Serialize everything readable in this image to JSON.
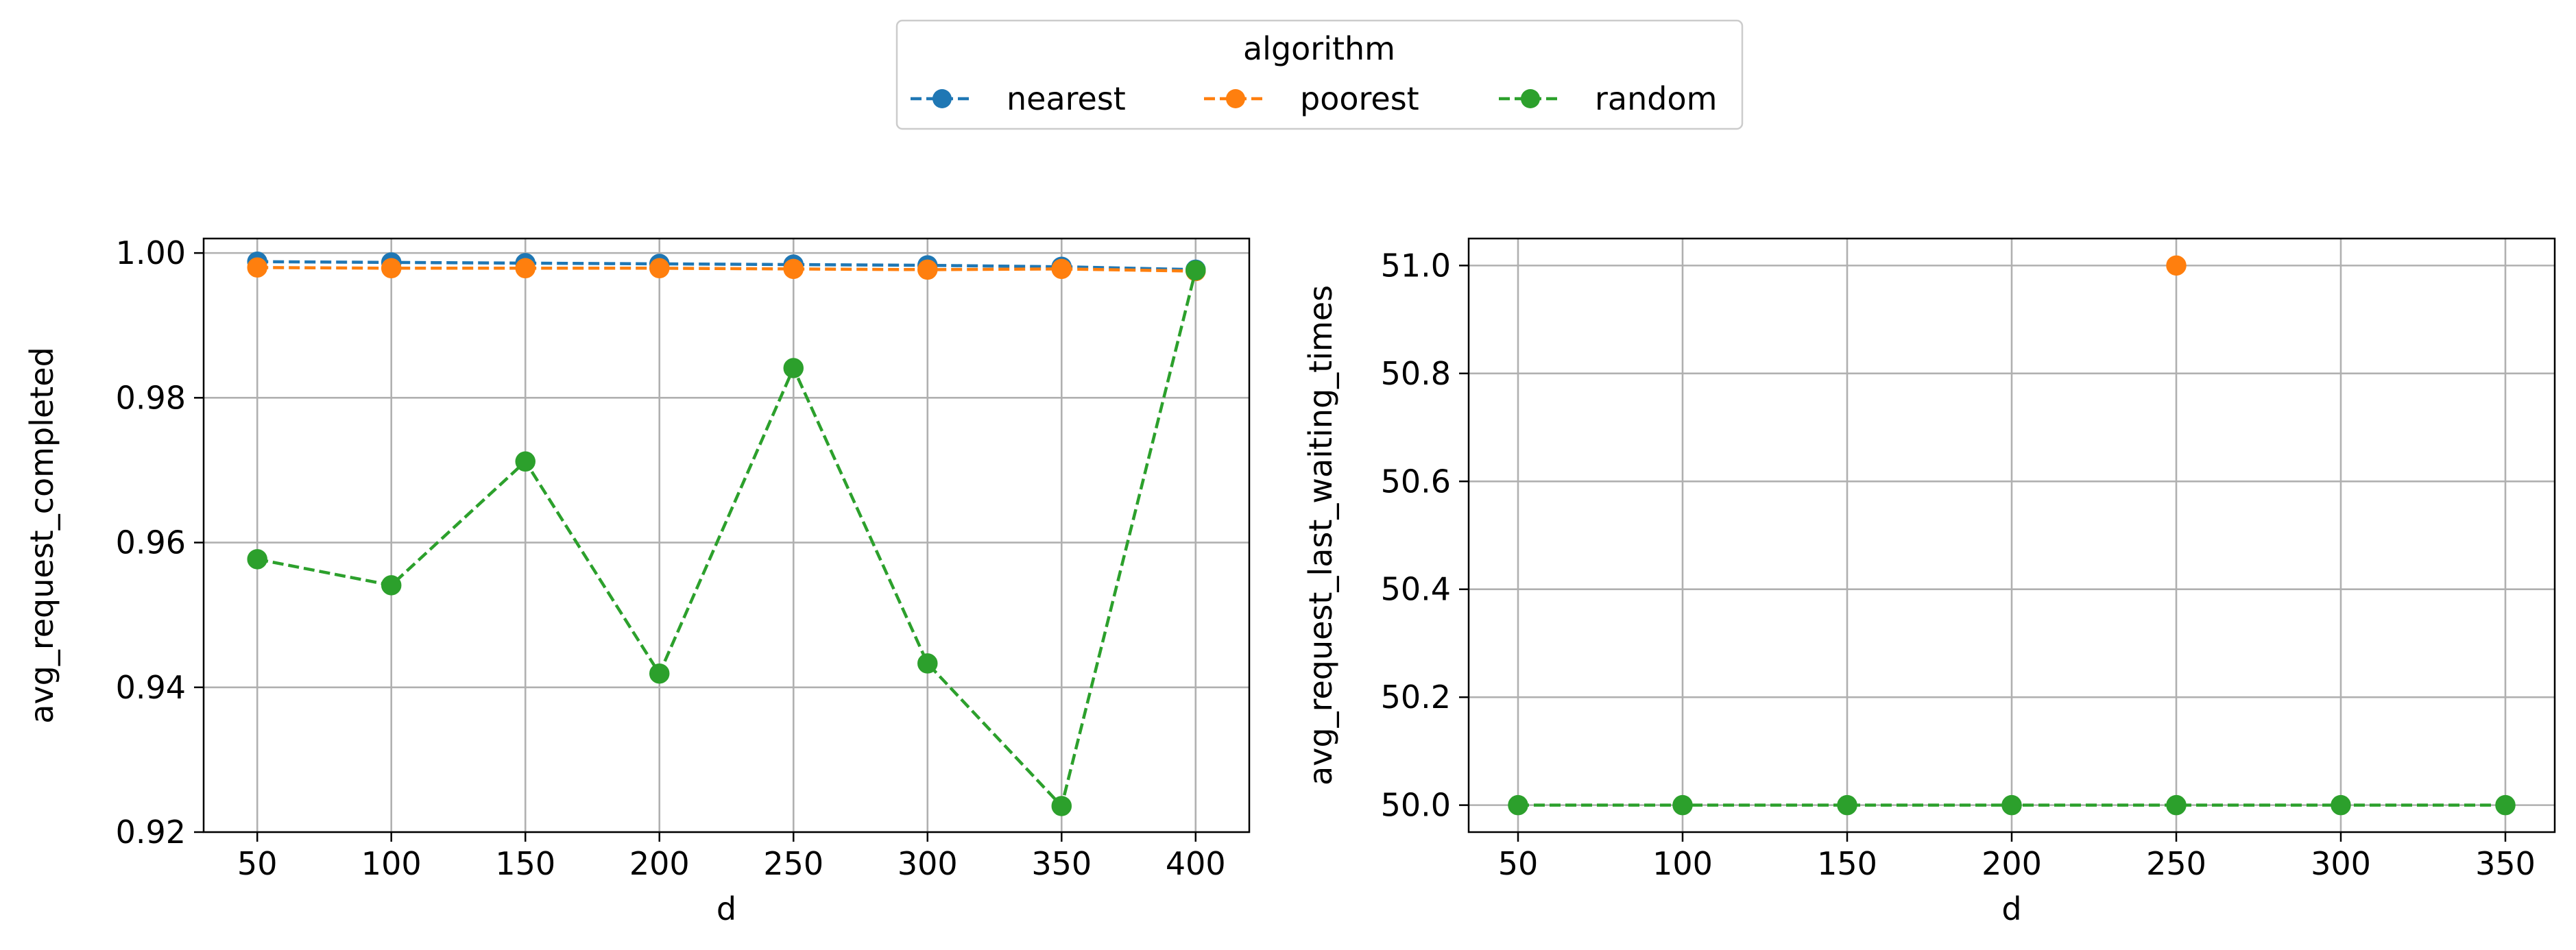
{
  "legend": {
    "title": "algorithm",
    "placement": "top-center",
    "entries": [
      {
        "label": "nearest",
        "color": "#1f77b4"
      },
      {
        "label": "poorest",
        "color": "#ff7f0e"
      },
      {
        "label": "random",
        "color": "#2ca02c"
      }
    ]
  },
  "chart_data": [
    {
      "type": "line",
      "xlabel": "d",
      "ylabel": "avg_request_completed",
      "grid": true,
      "line_style": "dashed",
      "marker": "circle",
      "xlim": [
        30,
        420
      ],
      "ylim": [
        0.92,
        1.002
      ],
      "xticks": [
        50,
        100,
        150,
        200,
        250,
        300,
        350,
        400
      ],
      "xtick_labels": [
        "50",
        "100",
        "150",
        "200",
        "250",
        "300",
        "350",
        "400"
      ],
      "yticks": [
        0.92,
        0.94,
        0.96,
        0.98,
        1.0
      ],
      "ytick_labels": [
        "0.92",
        "0.94",
        "0.96",
        "0.98",
        "1.00"
      ],
      "x": [
        50,
        100,
        150,
        200,
        250,
        300,
        350,
        400
      ],
      "series": [
        {
          "name": "nearest",
          "color": "#1f77b4",
          "values": [
            0.9988,
            0.9987,
            0.9986,
            0.9985,
            0.9984,
            0.9983,
            0.9981,
            0.9977
          ]
        },
        {
          "name": "poorest",
          "color": "#ff7f0e",
          "values": [
            0.998,
            0.9979,
            0.9979,
            0.9979,
            0.9978,
            0.9977,
            0.9978,
            0.9975
          ]
        },
        {
          "name": "random",
          "color": "#2ca02c",
          "values": [
            0.9577,
            0.9541,
            0.9712,
            0.9419,
            0.9841,
            0.9433,
            0.9236,
            0.9976
          ]
        }
      ]
    },
    {
      "type": "line",
      "xlabel": "d",
      "ylabel": "avg_request_last_waiting_times",
      "grid": true,
      "line_style": "dashed",
      "marker": "circle",
      "xlim": [
        35,
        365
      ],
      "ylim": [
        49.95,
        51.05
      ],
      "xticks": [
        50,
        100,
        150,
        200,
        250,
        300,
        350
      ],
      "xtick_labels": [
        "50",
        "100",
        "150",
        "200",
        "250",
        "300",
        "350"
      ],
      "yticks": [
        50.0,
        50.2,
        50.4,
        50.6,
        50.8,
        51.0
      ],
      "ytick_labels": [
        "50.0",
        "50.2",
        "50.4",
        "50.6",
        "50.8",
        "51.0"
      ],
      "series": [
        {
          "name": "poorest",
          "color": "#ff7f0e",
          "x": [
            250
          ],
          "values": [
            51.0
          ]
        },
        {
          "name": "random",
          "color": "#2ca02c",
          "x": [
            50,
            100,
            150,
            200,
            250,
            300,
            350
          ],
          "values": [
            50.0,
            50.0,
            50.0,
            50.0,
            50.0,
            50.0,
            50.0
          ]
        }
      ]
    }
  ]
}
